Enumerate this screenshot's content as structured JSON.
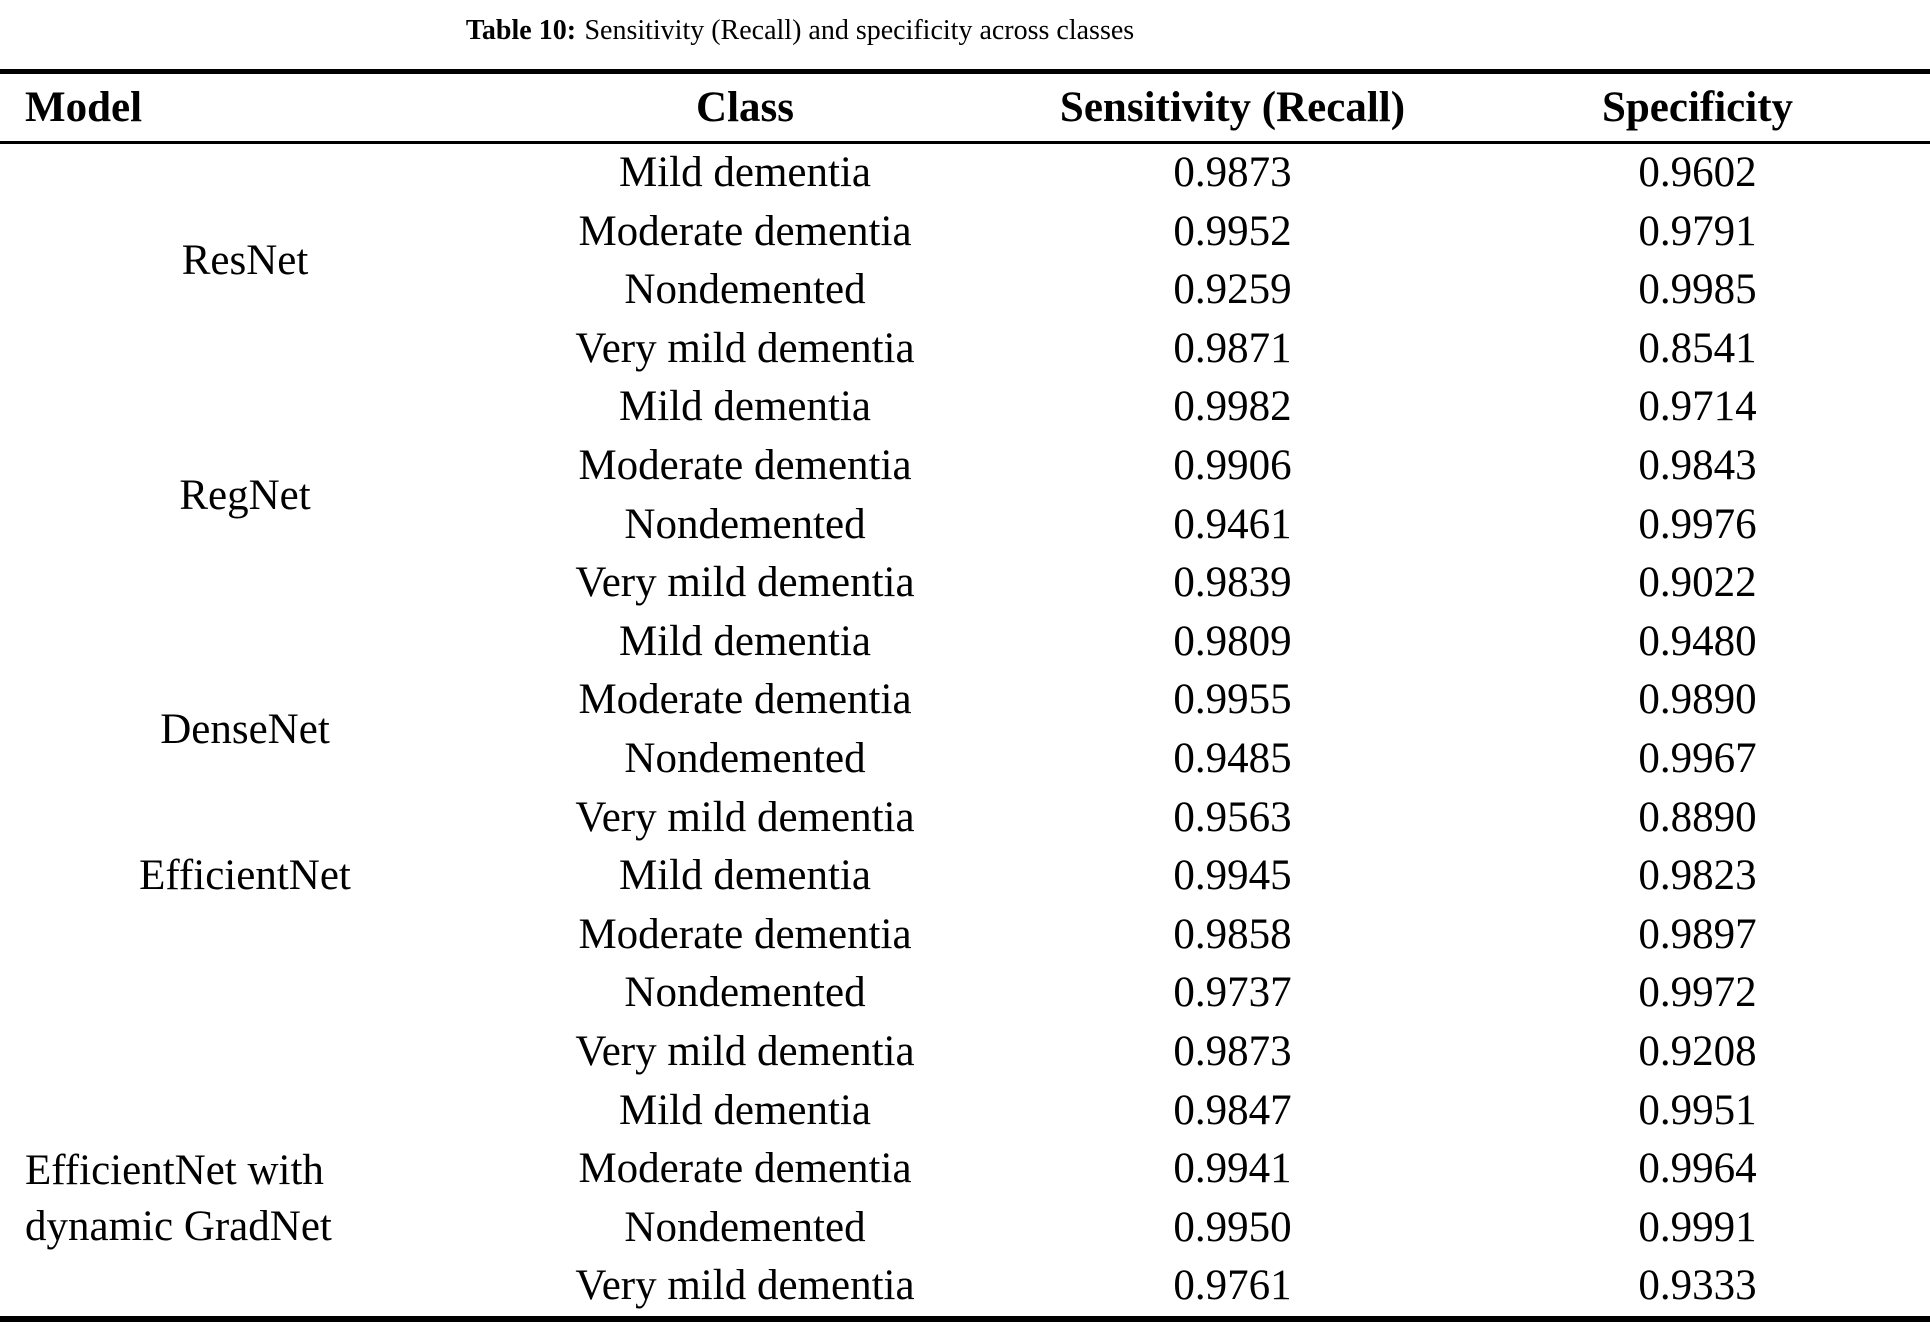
{
  "caption": {
    "label": "Table 10:",
    "text": "Sensitivity (Recall) and specificity across classes"
  },
  "table": {
    "headers": {
      "model": "Model",
      "class": "Class",
      "sensitivity": "Sensitivity (Recall)",
      "specificity": "Specificity"
    },
    "groups": [
      {
        "model": "ResNet",
        "rows": [
          {
            "class": "Mild dementia",
            "sensitivity": "0.9873",
            "specificity": "0.9602"
          },
          {
            "class": "Moderate dementia",
            "sensitivity": "0.9952",
            "specificity": "0.9791"
          },
          {
            "class": "Nondemented",
            "sensitivity": "0.9259",
            "specificity": "0.9985"
          },
          {
            "class": "Very mild dementia",
            "sensitivity": "0.9871",
            "specificity": "0.8541"
          }
        ]
      },
      {
        "model": "RegNet",
        "rows": [
          {
            "class": "Mild dementia",
            "sensitivity": "0.9982",
            "specificity": "0.9714"
          },
          {
            "class": "Moderate dementia",
            "sensitivity": "0.9906",
            "specificity": "0.9843"
          },
          {
            "class": "Nondemented",
            "sensitivity": "0.9461",
            "specificity": "0.9976"
          },
          {
            "class": "Very mild dementia",
            "sensitivity": "0.9839",
            "specificity": "0.9022"
          }
        ]
      },
      {
        "model": "DenseNet",
        "rows": [
          {
            "class": "Mild dementia",
            "sensitivity": "0.9809",
            "specificity": "0.9480"
          },
          {
            "class": "Moderate dementia",
            "sensitivity": "0.9955",
            "specificity": "0.9890"
          },
          {
            "class": "Nondemented",
            "sensitivity": "0.9485",
            "specificity": "0.9967"
          },
          {
            "class": "Very mild dementia",
            "sensitivity": "0.9563",
            "specificity": "0.8890"
          }
        ]
      },
      {
        "model": "EfficientNet",
        "rows": [
          {
            "class": "Mild dementia",
            "sensitivity": "0.9945",
            "specificity": "0.9823"
          },
          {
            "class": "Moderate dementia",
            "sensitivity": "0.9858",
            "specificity": "0.9897"
          },
          {
            "class": "Nondemented",
            "sensitivity": "0.9737",
            "specificity": "0.9972"
          },
          {
            "class": "Very mild dementia",
            "sensitivity": "0.9873",
            "specificity": "0.9208"
          }
        ]
      },
      {
        "model": "EfficientNet with dynamic GradNet",
        "rows": [
          {
            "class": "Mild dementia",
            "sensitivity": "0.9847",
            "specificity": "0.9951"
          },
          {
            "class": "Moderate dementia",
            "sensitivity": "0.9941",
            "specificity": "0.9964"
          },
          {
            "class": "Nondemented",
            "sensitivity": "0.9950",
            "specificity": "0.9991"
          },
          {
            "class": "Very mild dementia",
            "sensitivity": "0.9761",
            "specificity": "0.9333"
          }
        ]
      }
    ]
  }
}
